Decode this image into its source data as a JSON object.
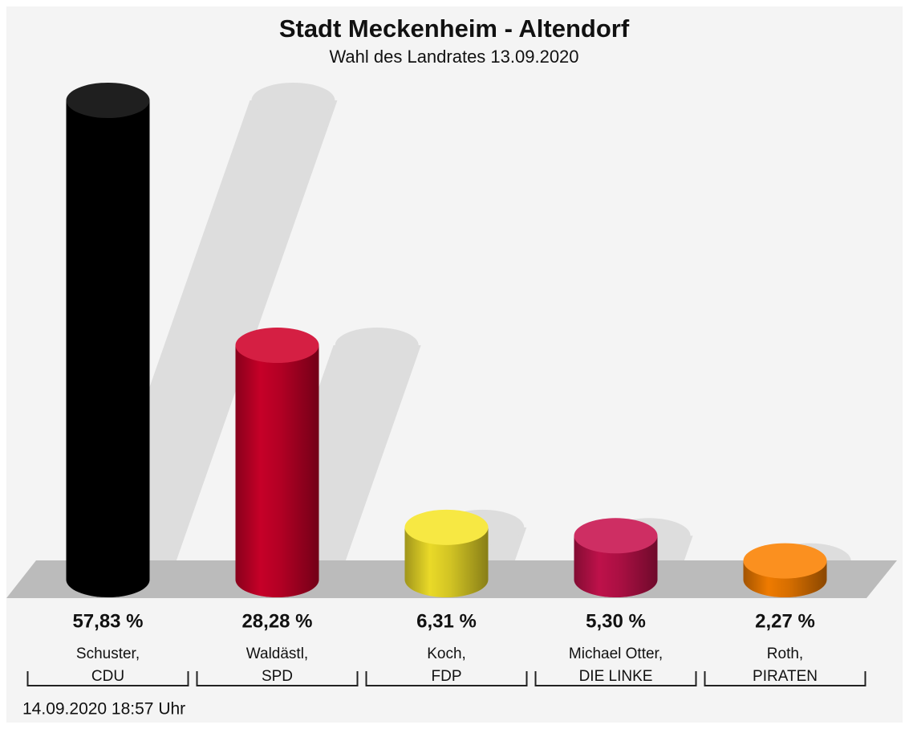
{
  "chart_data": {
    "type": "bar",
    "title": "Stadt Meckenheim - Altendorf",
    "subtitle": "Wahl des Landrates 13.09.2020",
    "categories": [
      [
        "Schuster,",
        "CDU"
      ],
      [
        "Waldästl,",
        "SPD"
      ],
      [
        "Koch,",
        "FDP"
      ],
      [
        "Michael Otter,",
        "DIE LINKE"
      ],
      [
        "Roth,",
        "PIRATEN"
      ]
    ],
    "values": [
      57.83,
      28.28,
      6.31,
      5.3,
      2.27
    ],
    "value_labels": [
      "57,83 %",
      "28,28 %",
      "6,31 %",
      "5,30 %",
      "2,27 %"
    ],
    "colors": [
      "#000000",
      "#d0002a",
      "#f6e52a",
      "#c8124e",
      "#fb8100"
    ],
    "footnote": "14.09.2020 18:57 Uhr"
  }
}
